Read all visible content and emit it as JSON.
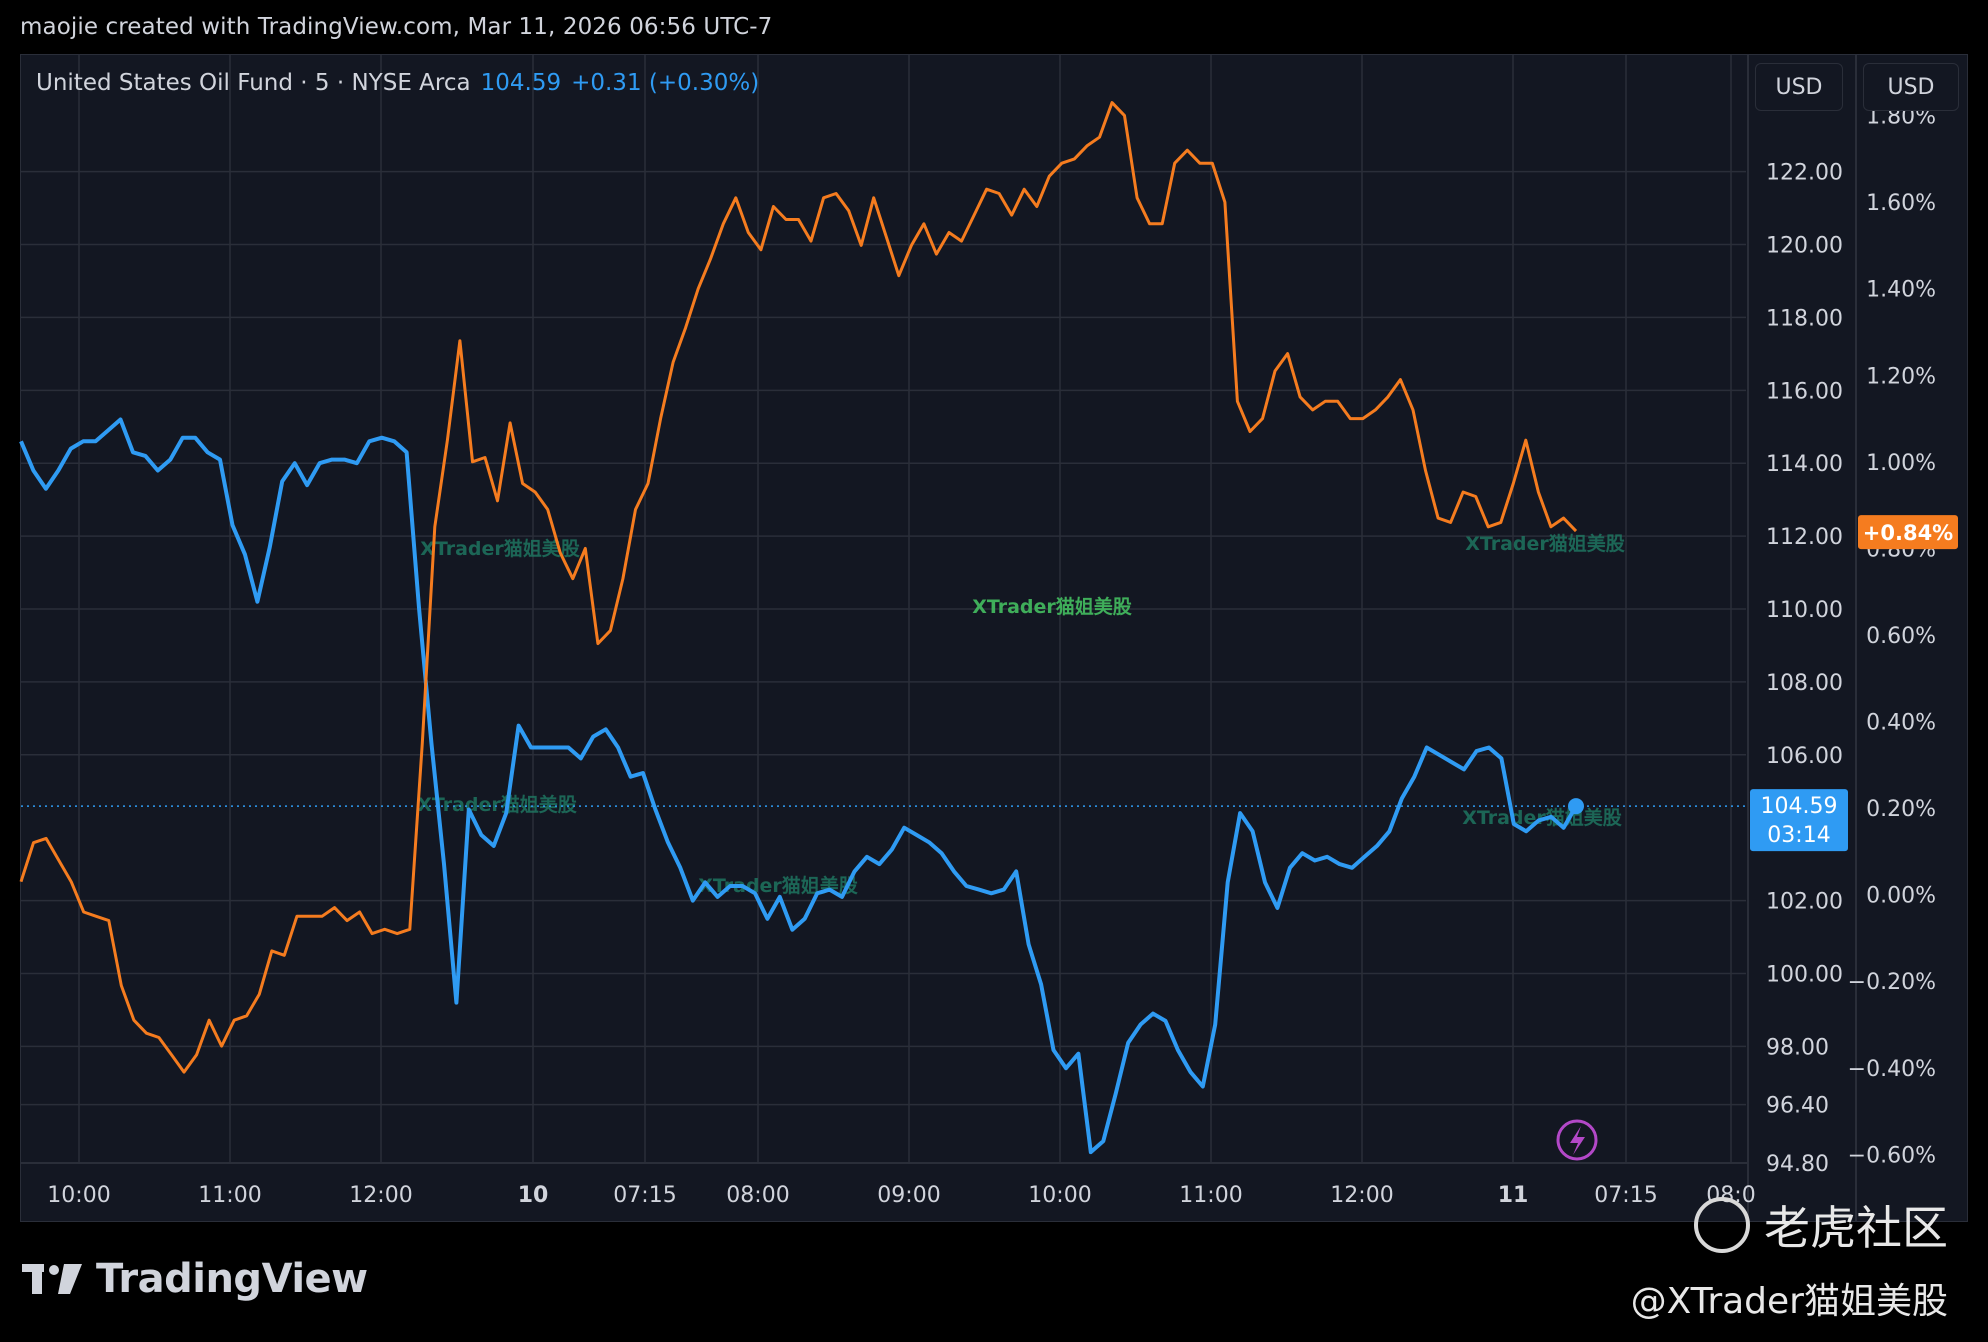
{
  "header_text": "maojie created with TradingView.com, Mar 11, 2026 06:56 UTC-7",
  "legend": {
    "symbol": "United States Oil Fund · 5 · NYSE Arca",
    "price": "104.59",
    "change": "+0.31 (+0.30%)"
  },
  "currency_buttons": [
    "USD",
    "USD"
  ],
  "watermark_text": "XTrader猫姐美股",
  "footer": {
    "brand": "TradingView",
    "community": "老虎社区",
    "handle": "@XTrader猫姐美股"
  },
  "colors": {
    "background": "#131722",
    "grid": "#2a2e39",
    "series_price": "#2f9bf3",
    "series_percent": "#f57c1f",
    "watermark": "#1f7a63"
  },
  "chart_data": {
    "type": "line",
    "x_ticks": [
      "10:00",
      "11:00",
      "12:00",
      "10",
      "07:15",
      "08:00",
      "09:00",
      "10:00",
      "11:00",
      "12:00",
      "11",
      "07:15",
      "08:0"
    ],
    "left_axis": {
      "ticks": [
        "122.00",
        "120.00",
        "118.00",
        "116.00",
        "114.00",
        "112.00",
        "110.00",
        "108.00",
        "106.00",
        "102.00",
        "100.00",
        "98.00",
        "96.40",
        "94.80"
      ],
      "range": [
        94.8,
        125.2
      ]
    },
    "right_axis": {
      "ticks": [
        "1.80%",
        "1.60%",
        "1.40%",
        "1.20%",
        "1.00%",
        "0.80%",
        "0.60%",
        "0.40%",
        "0.20%",
        "0.00%",
        "−0.20%",
        "−0.40%",
        "−0.60%"
      ],
      "range": [
        -0.62,
        1.94
      ]
    },
    "last_price_label": {
      "value": "104.59",
      "countdown": "03:14"
    },
    "last_percent_label": "+0.84%",
    "series": [
      {
        "axis": "left",
        "values": [
          114.6,
          113.8,
          113.3,
          113.8,
          114.4,
          114.6,
          114.6,
          114.9,
          115.2,
          114.3,
          114.2,
          113.8,
          114.1,
          114.7,
          114.7,
          114.3,
          114.1,
          112.3,
          111.5,
          110.2,
          111.7,
          113.5,
          114.0,
          113.4,
          114.0,
          114.1,
          114.1,
          114.0,
          114.6,
          114.7,
          114.6,
          114.3,
          110.0,
          106.3,
          103.0,
          99.2,
          104.5,
          103.8,
          103.5,
          104.4,
          106.8,
          106.2,
          106.2,
          106.2,
          106.2,
          105.9,
          106.5,
          106.7,
          106.2,
          105.4,
          105.5,
          104.5,
          103.6,
          102.9,
          102.0,
          102.5,
          102.1,
          102.4,
          102.4,
          102.2,
          101.5,
          102.1,
          101.2,
          101.5,
          102.2,
          102.3,
          102.1,
          102.8,
          103.2,
          103.0,
          103.4,
          104.0,
          103.8,
          103.6,
          103.3,
          102.8,
          102.4,
          102.3,
          102.2,
          102.3,
          102.8,
          100.8,
          99.7,
          97.9,
          97.4,
          97.8,
          95.1,
          95.4,
          96.7,
          98.1,
          98.6,
          98.9,
          98.7,
          97.9,
          97.3,
          96.9,
          98.6,
          102.5,
          104.4,
          103.9,
          102.5,
          101.8,
          102.9,
          103.3,
          103.1,
          103.2,
          103.0,
          102.9,
          103.2,
          103.5,
          103.9,
          104.8,
          105.4,
          106.2,
          106.0,
          105.8,
          105.6,
          106.1,
          106.2,
          105.9,
          104.1,
          103.9,
          104.2,
          104.3,
          104.0,
          104.59
        ]
      },
      {
        "axis": "right",
        "values": [
          0.03,
          0.12,
          0.13,
          0.08,
          0.03,
          -0.04,
          -0.05,
          -0.06,
          -0.21,
          -0.29,
          -0.32,
          -0.33,
          -0.37,
          -0.41,
          -0.37,
          -0.29,
          -0.35,
          -0.29,
          -0.28,
          -0.23,
          -0.13,
          -0.14,
          -0.05,
          -0.05,
          -0.05,
          -0.03,
          -0.06,
          -0.04,
          -0.09,
          -0.08,
          -0.09,
          -0.08,
          0.35,
          0.85,
          1.05,
          1.28,
          1.0,
          1.01,
          0.91,
          1.09,
          0.95,
          0.93,
          0.89,
          0.79,
          0.73,
          0.8,
          0.58,
          0.61,
          0.73,
          0.89,
          0.95,
          1.1,
          1.23,
          1.31,
          1.4,
          1.47,
          1.55,
          1.61,
          1.53,
          1.49,
          1.59,
          1.56,
          1.56,
          1.51,
          1.61,
          1.62,
          1.58,
          1.5,
          1.61,
          1.52,
          1.43,
          1.5,
          1.55,
          1.48,
          1.53,
          1.51,
          1.57,
          1.63,
          1.62,
          1.57,
          1.63,
          1.59,
          1.66,
          1.69,
          1.7,
          1.73,
          1.75,
          1.83,
          1.8,
          1.61,
          1.55,
          1.55,
          1.69,
          1.72,
          1.69,
          1.69,
          1.6,
          1.14,
          1.07,
          1.1,
          1.21,
          1.25,
          1.15,
          1.12,
          1.14,
          1.14,
          1.1,
          1.1,
          1.12,
          1.15,
          1.19,
          1.12,
          0.98,
          0.87,
          0.86,
          0.93,
          0.92,
          0.85,
          0.86,
          0.95,
          1.05,
          0.93,
          0.85,
          0.87,
          0.84
        ]
      }
    ]
  }
}
